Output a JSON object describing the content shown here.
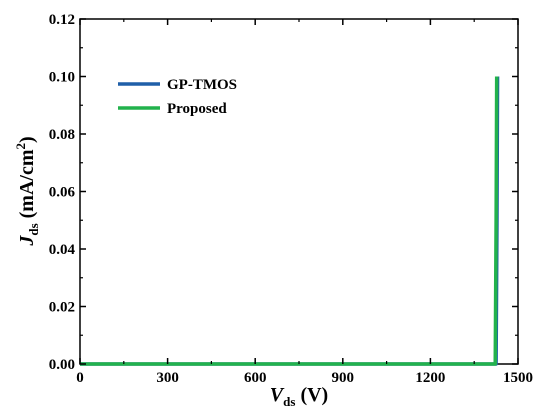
{
  "chart_data": {
    "type": "line",
    "xlabel": {
      "main": "V",
      "sub": "ds",
      "unit": " (V)"
    },
    "ylabel": {
      "main": "J",
      "sub": "ds",
      "unit_pre": " (mA/cm",
      "unit_sup": "2",
      "unit_post": ")"
    },
    "xlim": [
      0,
      1500
    ],
    "ylim": [
      0.0,
      0.12
    ],
    "x_ticks": [
      "0",
      "300",
      "600",
      "900",
      "1200",
      "1500"
    ],
    "y_ticks": [
      "0.00",
      "0.02",
      "0.04",
      "0.06",
      "0.08",
      "0.10",
      "0.12"
    ],
    "grid": false,
    "legend_position": "top-left",
    "series": [
      {
        "name": "GP-TMOS",
        "color": "#1f5fa8",
        "x": [
          0,
          1420,
          1425,
          1428,
          1430
        ],
        "y": [
          0.0,
          0.0,
          0.0,
          0.05,
          0.1
        ]
      },
      {
        "name": "Proposed",
        "color": "#22b24c",
        "x": [
          0,
          1418,
          1422,
          1425,
          1427
        ],
        "y": [
          0.0,
          0.0,
          0.0,
          0.05,
          0.1
        ]
      }
    ]
  }
}
